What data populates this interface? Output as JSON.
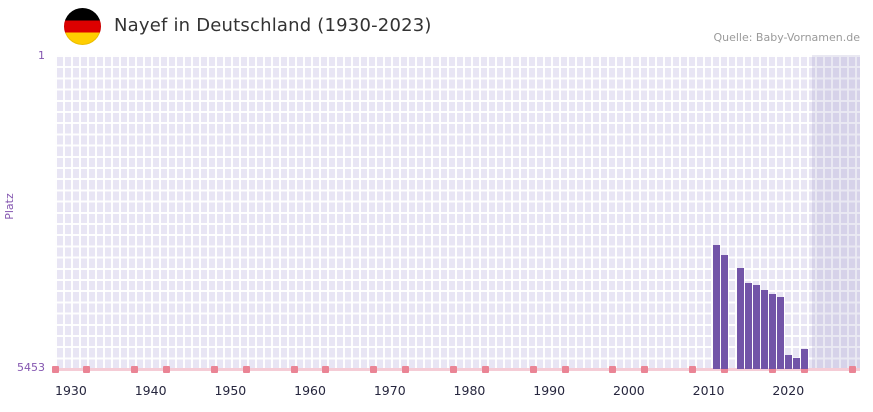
{
  "header": {
    "title": "Nayef in Deutschland (1930-2023)",
    "source": "Quelle: Baby-Vornamen.de",
    "flag": "germany-flag"
  },
  "chart_data": {
    "type": "bar",
    "title": "Nayef in Deutschland (1930-2023)",
    "xlabel": "",
    "ylabel": "Platz",
    "y_axis": {
      "top_label": "1",
      "bottom_label": "5453",
      "min": 1,
      "max": 5453,
      "inverted": true
    },
    "x_range": [
      1928,
      2029
    ],
    "x_ticks": [
      1930,
      1940,
      1950,
      1960,
      1970,
      1980,
      1990,
      2000,
      2010,
      2020
    ],
    "minor_ticks": [
      1928,
      1932,
      1938,
      1942,
      1948,
      1952,
      1958,
      1962,
      1968,
      1972,
      1978,
      1982,
      1988,
      1992,
      1998,
      2002,
      2008,
      2012,
      2018,
      2022,
      2028
    ],
    "recent_band_start_year": 2023,
    "series": [
      {
        "name": "Platz",
        "points": [
          {
            "year": 2011,
            "rank": 3290
          },
          {
            "year": 2012,
            "rank": 3470
          },
          {
            "year": 2014,
            "rank": 3690
          },
          {
            "year": 2015,
            "rank": 3950
          },
          {
            "year": 2016,
            "rank": 3990
          },
          {
            "year": 2017,
            "rank": 4070
          },
          {
            "year": 2018,
            "rank": 4150
          },
          {
            "year": 2019,
            "rank": 4190
          },
          {
            "year": 2020,
            "rank": 5210
          },
          {
            "year": 2021,
            "rank": 5260
          },
          {
            "year": 2022,
            "rank": 5100
          }
        ]
      }
    ],
    "colors": {
      "bar": "#7254a8",
      "plot_background": "#e8e5f4",
      "grid": "#ffffff",
      "recent_band": "rgba(109,96,168,0.14)",
      "baseline": "#f5ccd6",
      "minor_tick": "#ea8495",
      "y_axis_text": "#8456b0",
      "x_axis_text": "#26263e"
    },
    "legend": null,
    "grid": true
  }
}
